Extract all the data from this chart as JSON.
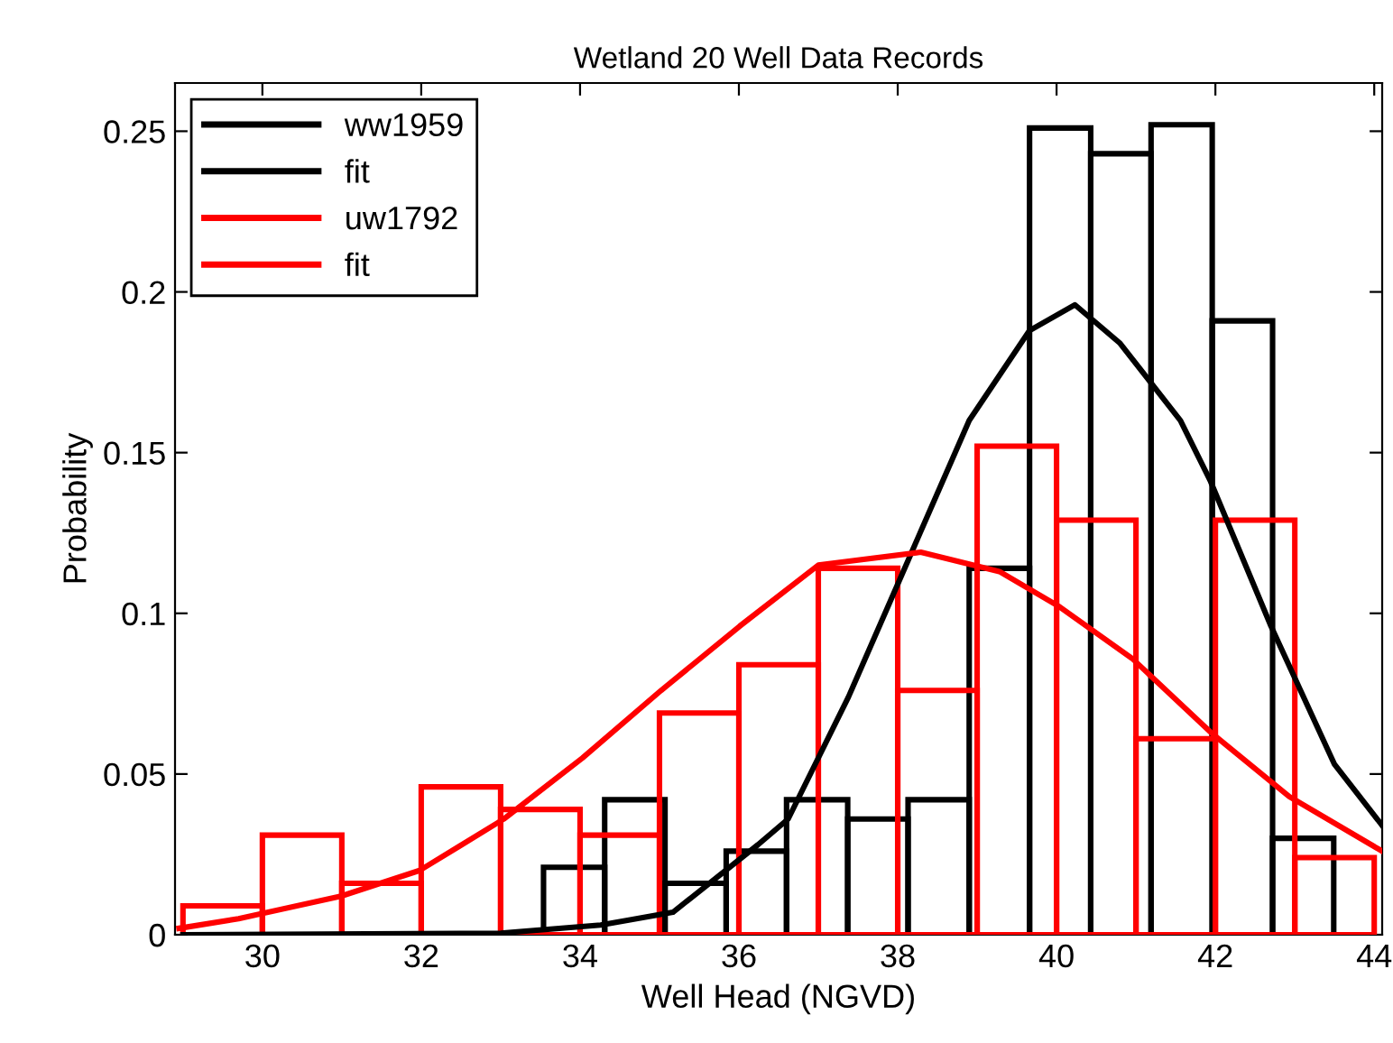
{
  "chart_data": {
    "type": "histogram",
    "title": "Wetland 20 Well Data Records",
    "xlabel": "Well Head (NGVD)",
    "ylabel": "Probability",
    "xlim": [
      28.9,
      44.1
    ],
    "xticks": [
      30,
      32,
      34,
      36,
      38,
      40,
      42,
      44
    ],
    "ylim": [
      0,
      0.265
    ],
    "yticks": [
      0,
      0.05,
      {
        "value": 0.1,
        "label": "0.1"
      },
      0.15,
      {
        "value": 0.2,
        "label": "0.2"
      },
      0.25
    ],
    "legend": "top left",
    "grid": false,
    "series": [
      {
        "name": "ww1959",
        "color": "#000000",
        "bins": [
          33.54,
          34.31,
          35.07,
          35.84,
          36.6,
          37.37,
          38.13,
          38.9,
          39.66,
          40.43,
          41.19,
          41.96,
          42.72,
          43.49
        ],
        "values": [
          0.021,
          0.042,
          0.016,
          0.026,
          0.042,
          0.036,
          0.042,
          0.114,
          0.251,
          0.243,
          0.252,
          0.191,
          0.03
        ]
      },
      {
        "name": "fit",
        "type": "line",
        "color": "#000000",
        "x": [
          29.0,
          33.0,
          34.26,
          35.17,
          36.24,
          36.62,
          37.38,
          38.14,
          38.9,
          39.66,
          40.23,
          40.8,
          41.56,
          41.94,
          42.7,
          43.5,
          44.1
        ],
        "values": [
          0,
          0.0005,
          0.003,
          0.007,
          0.028,
          0.036,
          0.074,
          0.117,
          0.16,
          0.188,
          0.196,
          0.184,
          0.16,
          0.141,
          0.096,
          0.053,
          0.034
        ]
      },
      {
        "name": "uw1792",
        "color": "#ff0000",
        "bins": [
          29,
          30,
          31,
          32,
          33,
          34,
          35,
          36,
          37,
          38,
          39,
          40,
          41,
          42,
          43,
          44
        ],
        "values": [
          0.009,
          0.031,
          0.016,
          0.046,
          0.039,
          0.031,
          0.069,
          0.084,
          0.114,
          0.076,
          0.152,
          0.129,
          0.061,
          0.129,
          0.024
        ]
      },
      {
        "name": "fit",
        "type": "line",
        "color": "#ff0000",
        "x": [
          28.95,
          29.7,
          30.99,
          31.98,
          33.04,
          34.03,
          35.02,
          36.01,
          37.0,
          38.29,
          39.28,
          40.04,
          40.95,
          41.94,
          42.93,
          44.1
        ],
        "values": [
          0.002,
          0.005,
          0.012,
          0.02,
          0.036,
          0.055,
          0.076,
          0.096,
          0.115,
          0.119,
          0.113,
          0.102,
          0.086,
          0.063,
          0.043,
          0.026
        ]
      }
    ]
  }
}
